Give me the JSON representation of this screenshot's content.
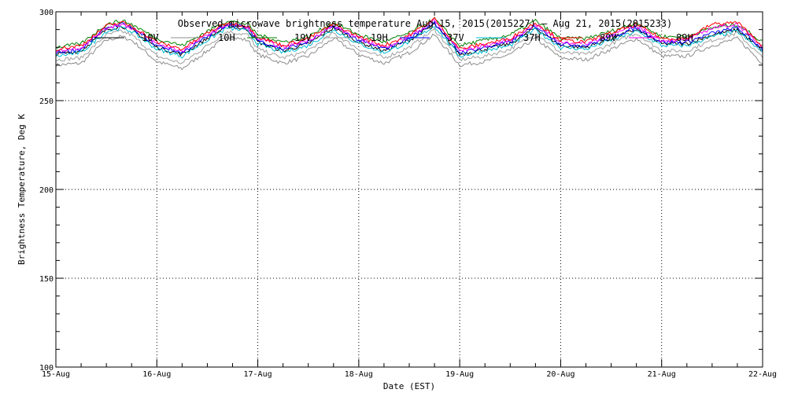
{
  "chart_data": {
    "type": "line",
    "title": "Observed microwave brightness temperature Aug 15, 2015(2015227) – Aug 21, 2015(2015233)",
    "xlabel": "Date (EST)",
    "ylabel": "Brightness Temperature, Deg K",
    "xlim": [
      0,
      7
    ],
    "ylim": [
      100,
      300
    ],
    "grid": true,
    "x_ticks": [
      "15-Aug",
      "16-Aug",
      "17-Aug",
      "18-Aug",
      "19-Aug",
      "20-Aug",
      "21-Aug",
      "22-Aug"
    ],
    "y_ticks": [
      100,
      150,
      200,
      250,
      300
    ],
    "legend_position": "top",
    "x": [
      0,
      0.25,
      0.5,
      0.65,
      0.75,
      1.0,
      1.25,
      1.5,
      1.7,
      1.9,
      2.0,
      2.25,
      2.5,
      2.75,
      3.0,
      3.25,
      3.5,
      3.75,
      4.0,
      4.25,
      4.5,
      4.75,
      5.0,
      5.25,
      5.5,
      5.75,
      6.0,
      6.25,
      6.5,
      6.75,
      7.0
    ],
    "series": [
      {
        "name": "10V",
        "color": "#000000",
        "values": [
          276,
          278,
          290,
          292,
          290,
          280,
          276,
          285,
          292,
          290,
          283,
          278,
          282,
          291,
          283,
          278,
          284,
          293,
          276,
          279,
          282,
          291,
          281,
          280,
          285,
          290,
          282,
          282,
          287,
          290,
          278
        ]
      },
      {
        "name": "10H",
        "color": "#8c8c8c",
        "values": [
          270,
          271,
          284,
          286,
          284,
          272,
          268,
          278,
          286,
          284,
          276,
          271,
          275,
          285,
          276,
          271,
          277,
          287,
          270,
          272,
          276,
          285,
          274,
          273,
          279,
          285,
          275,
          275,
          281,
          285,
          271
        ]
      },
      {
        "name": "19V",
        "color": "#008000",
        "values": [
          280,
          282,
          293,
          295,
          293,
          285,
          281,
          289,
          295,
          293,
          287,
          283,
          286,
          294,
          287,
          283,
          288,
          296,
          281,
          284,
          287,
          295,
          285,
          285,
          289,
          294,
          286,
          286,
          291,
          293,
          283
        ]
      },
      {
        "name": "19H",
        "color": "#a0a0a0",
        "values": [
          273,
          274,
          287,
          289,
          287,
          275,
          271,
          281,
          289,
          287,
          279,
          274,
          278,
          288,
          279,
          274,
          280,
          290,
          273,
          275,
          279,
          288,
          277,
          276,
          282,
          288,
          278,
          278,
          284,
          288,
          274
        ]
      },
      {
        "name": "37V",
        "color": "#0000ff",
        "values": [
          277,
          279,
          291,
          293,
          291,
          281,
          277,
          286,
          293,
          291,
          284,
          279,
          283,
          292,
          284,
          279,
          285,
          294,
          277,
          280,
          283,
          292,
          282,
          281,
          286,
          291,
          283,
          283,
          288,
          291,
          279
        ]
      },
      {
        "name": "37H",
        "color": "#00bcd4",
        "values": [
          275,
          277,
          289,
          291,
          289,
          279,
          275,
          284,
          291,
          289,
          282,
          277,
          281,
          290,
          282,
          277,
          283,
          292,
          275,
          278,
          281,
          290,
          280,
          279,
          284,
          289,
          281,
          281,
          286,
          289,
          277
        ]
      },
      {
        "name": "89V",
        "color": "#ff0000",
        "values": [
          279,
          281,
          292,
          294,
          292,
          283,
          279,
          288,
          294,
          292,
          286,
          281,
          285,
          293,
          286,
          281,
          287,
          296,
          279,
          282,
          285,
          294,
          284,
          283,
          288,
          293,
          285,
          285,
          293,
          294,
          281
        ]
      },
      {
        "name": "89H",
        "color": "#ff00ff",
        "values": [
          278,
          280,
          291,
          293,
          291,
          282,
          278,
          287,
          293,
          291,
          285,
          280,
          284,
          292,
          285,
          280,
          286,
          295,
          278,
          281,
          284,
          293,
          283,
          282,
          287,
          292,
          284,
          284,
          291,
          293,
          280
        ]
      }
    ]
  }
}
